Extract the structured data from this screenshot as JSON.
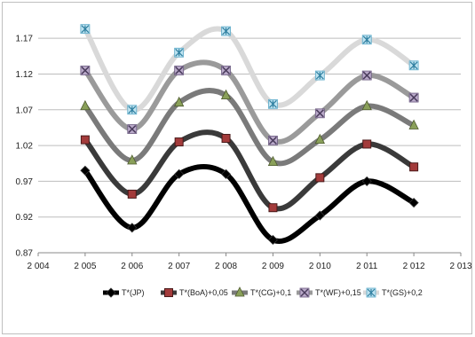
{
  "chart_data": {
    "type": "line",
    "title": "",
    "xlabel": "",
    "ylabel": "",
    "x": [
      2005,
      2006,
      2007,
      2008,
      2009,
      2010,
      2011,
      2012
    ],
    "xlim": [
      2004,
      2013
    ],
    "x_ticks": [
      "2 004",
      "2 005",
      "2 006",
      "2 007",
      "2 008",
      "2 009",
      "2 010",
      "2 011",
      "2 012",
      "2 013"
    ],
    "ylim": [
      0.87,
      1.195
    ],
    "y_ticks": [
      "0.87",
      "0.92",
      "0.97",
      "1.02",
      "1.07",
      "1.12",
      "1.17"
    ],
    "grid": "horizontal",
    "legend_position": "bottom",
    "series": [
      {
        "name": "T*(JP)",
        "color": "#000000",
        "marker": "diamond",
        "values": [
          0.985,
          0.905,
          0.98,
          0.98,
          0.888,
          0.922,
          0.97,
          0.94
        ]
      },
      {
        "name": "T*(BoA)+0,05",
        "color": "#3a3a3a",
        "marker": "square",
        "values": [
          1.028,
          0.952,
          1.025,
          1.03,
          0.933,
          0.975,
          1.022,
          0.99
        ]
      },
      {
        "name": "T*(CG)+0,1",
        "color": "#7a7a7a",
        "marker": "triangle",
        "values": [
          1.075,
          0.999,
          1.08,
          1.09,
          0.997,
          1.028,
          1.075,
          1.048
        ]
      },
      {
        "name": "T*(WF)+0,15",
        "color": "#9a9a9a",
        "marker": "x",
        "values": [
          1.125,
          1.043,
          1.125,
          1.125,
          1.027,
          1.065,
          1.118,
          1.087
        ]
      },
      {
        "name": "T*(GS)+0,2",
        "color": "#d9d9d9",
        "marker": "asterisk",
        "values": [
          1.183,
          1.07,
          1.15,
          1.18,
          1.078,
          1.118,
          1.168,
          1.132
        ]
      }
    ]
  }
}
